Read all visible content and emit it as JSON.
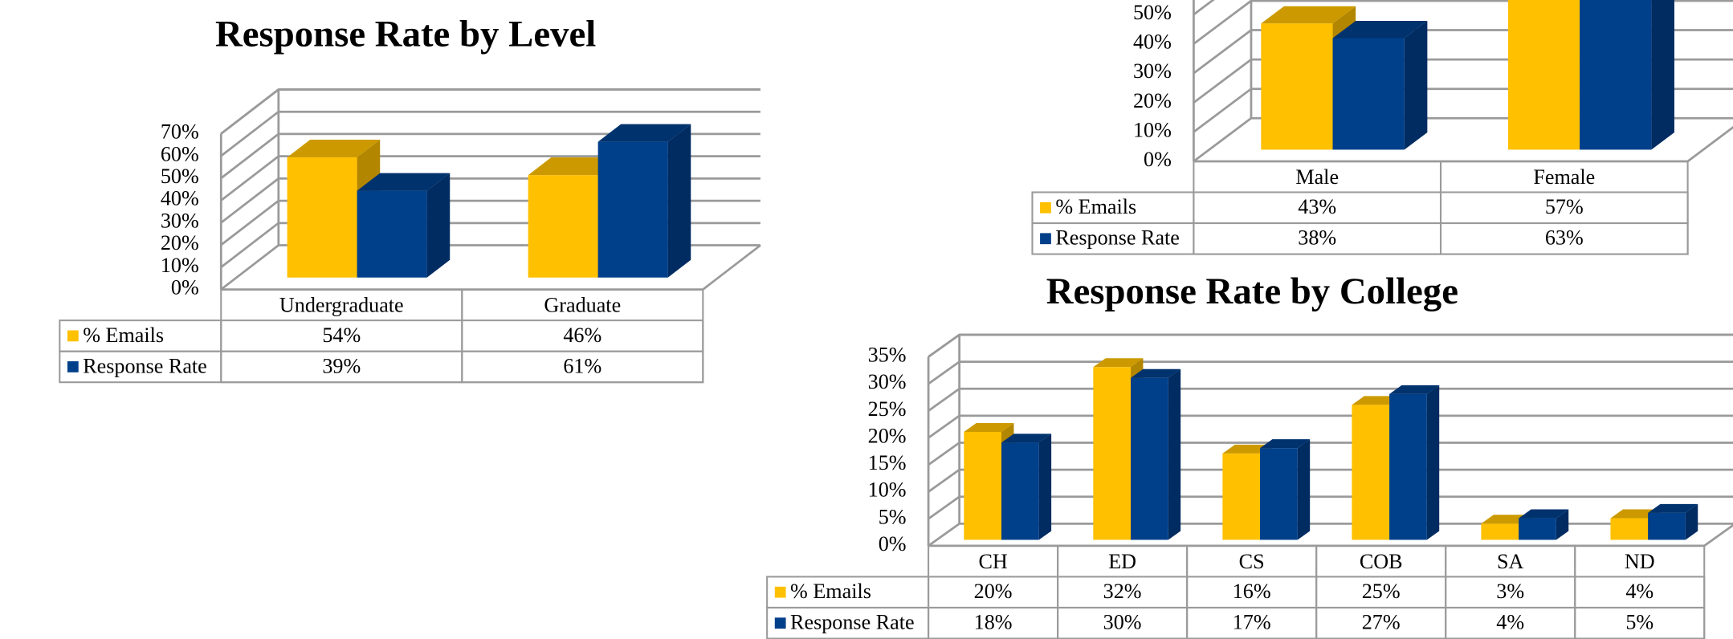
{
  "chart_data": [
    {
      "type": "bar3d",
      "title": "Response Rate by Level",
      "categories": [
        "Undergraduate",
        "Graduate"
      ],
      "series": [
        {
          "name": "% Emails",
          "color": "#FFC000",
          "values": [
            54,
            46
          ],
          "value_labels": [
            "54%",
            "46%"
          ]
        },
        {
          "name": "Response Rate",
          "color": "#003F8A",
          "values": [
            39,
            61
          ],
          "value_labels": [
            "39%",
            "61%"
          ]
        }
      ],
      "ylim": [
        0,
        70
      ],
      "yticks": [
        {
          "value": 0,
          "label": "0%"
        },
        {
          "value": 10,
          "label": "10%"
        },
        {
          "value": 20,
          "label": "20%"
        },
        {
          "value": 30,
          "label": "30%"
        },
        {
          "value": 40,
          "label": "40%"
        },
        {
          "value": 50,
          "label": "50%"
        },
        {
          "value": 60,
          "label": "60%"
        },
        {
          "value": 70,
          "label": "70%"
        }
      ],
      "grid": true
    },
    {
      "type": "bar3d",
      "categories": [
        "Male",
        "Female"
      ],
      "series": [
        {
          "name": "% Emails",
          "color": "#FFC000",
          "values": [
            43,
            57
          ],
          "value_labels": [
            "43%",
            "57%"
          ]
        },
        {
          "name": "Response Rate",
          "color": "#003F8A",
          "values": [
            38,
            63
          ],
          "value_labels": [
            "38%",
            "63%"
          ]
        }
      ],
      "ylim": [
        0,
        70
      ],
      "yticks": [
        {
          "value": 0,
          "label": "0%"
        },
        {
          "value": 10,
          "label": "10%"
        },
        {
          "value": 20,
          "label": "20%"
        },
        {
          "value": 30,
          "label": "30%"
        },
        {
          "value": 40,
          "label": "40%"
        },
        {
          "value": 50,
          "label": "50%"
        }
      ],
      "grid": true
    },
    {
      "type": "bar3d",
      "title": "Response Rate by College",
      "categories": [
        "CH",
        "ED",
        "CS",
        "COB",
        "SA",
        "ND"
      ],
      "series": [
        {
          "name": "% Emails",
          "color": "#FFC000",
          "values": [
            20,
            32,
            16,
            25,
            3,
            4
          ],
          "value_labels": [
            "20%",
            "32%",
            "16%",
            "25%",
            "3%",
            "4%"
          ]
        },
        {
          "name": "Response Rate",
          "color": "#003F8A",
          "values": [
            18,
            30,
            17,
            27,
            4,
            5
          ],
          "value_labels": [
            "18%",
            "30%",
            "17%",
            "27%",
            "4%",
            "5%"
          ]
        }
      ],
      "ylim": [
        0,
        35
      ],
      "yticks": [
        {
          "value": 0,
          "label": "0%"
        },
        {
          "value": 5,
          "label": "5%"
        },
        {
          "value": 10,
          "label": "10%"
        },
        {
          "value": 15,
          "label": "15%"
        },
        {
          "value": 20,
          "label": "20%"
        },
        {
          "value": 25,
          "label": "25%"
        },
        {
          "value": 30,
          "label": "30%"
        },
        {
          "value": 35,
          "label": "35%"
        }
      ],
      "grid": true
    }
  ]
}
